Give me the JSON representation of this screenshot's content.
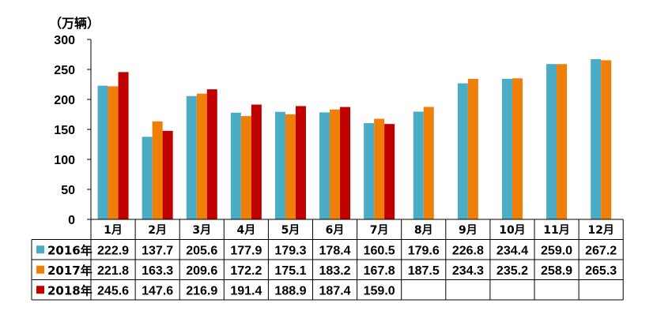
{
  "chart_data": {
    "type": "bar",
    "unit_label": "（万辆）",
    "categories": [
      "1月",
      "2月",
      "3月",
      "4月",
      "5月",
      "6月",
      "7月",
      "8月",
      "9月",
      "10月",
      "11月",
      "12月"
    ],
    "ylim": [
      0,
      300
    ],
    "yticks": [
      0,
      50,
      100,
      150,
      200,
      250,
      300
    ],
    "grid": false,
    "legend": "in data table (left)",
    "series": [
      {
        "name": "2016年",
        "color": "#4BACC6",
        "values": [
          222.9,
          137.7,
          205.6,
          177.9,
          179.3,
          178.4,
          160.5,
          179.6,
          226.8,
          234.4,
          259.0,
          267.2
        ],
        "labels": [
          "222.9",
          "137.7",
          "205.6",
          "177.9",
          "179.3",
          "178.4",
          "160.5",
          "179.6",
          "226.8",
          "234.4",
          "259.0",
          "267.2"
        ]
      },
      {
        "name": "2017年",
        "color": "#F07F09",
        "values": [
          221.8,
          163.3,
          209.6,
          172.2,
          175.1,
          183.2,
          167.8,
          187.5,
          234.3,
          235.2,
          258.9,
          265.3
        ],
        "labels": [
          "221.8",
          "163.3",
          "209.6",
          "172.2",
          "175.1",
          "183.2",
          "167.8",
          "187.5",
          "234.3",
          "235.2",
          "258.9",
          "265.3"
        ]
      },
      {
        "name": "2018年",
        "color": "#C00000",
        "values": [
          245.6,
          147.6,
          216.9,
          191.4,
          188.9,
          187.4,
          159.0,
          null,
          null,
          null,
          null,
          null
        ],
        "labels": [
          "245.6",
          "147.6",
          "216.9",
          "191.4",
          "188.9",
          "187.4",
          "159.0",
          "",
          "",
          "",
          "",
          ""
        ]
      }
    ]
  }
}
